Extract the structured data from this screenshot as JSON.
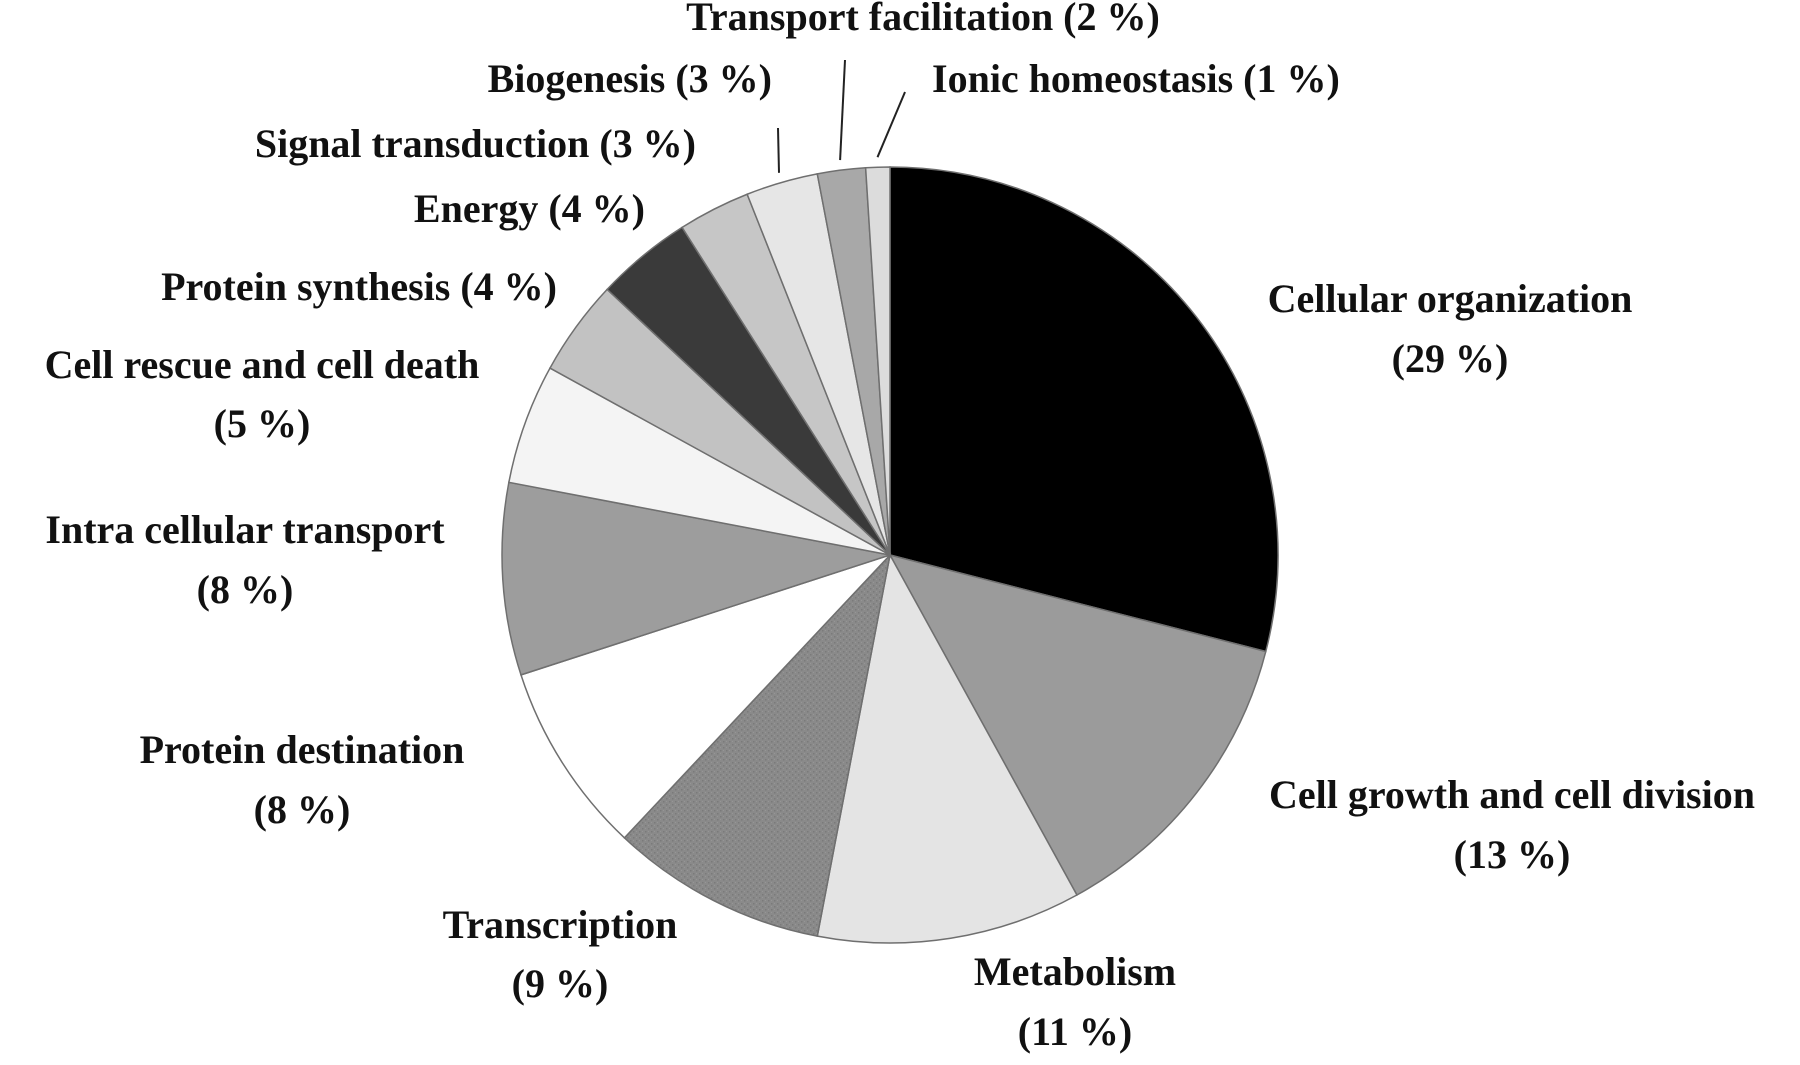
{
  "chart_data": {
    "type": "pie",
    "title": "",
    "slices": [
      {
        "label": "Cellular organization",
        "pct_text": "(29 %)",
        "value": 29,
        "color": "#000000",
        "texture": false
      },
      {
        "label": "Cell growth and cell division",
        "pct_text": "(13 %)",
        "value": 13,
        "color": "#9b9b9b",
        "texture": false
      },
      {
        "label": "Metabolism",
        "pct_text": "(11 %)",
        "value": 11,
        "color": "#e4e4e4",
        "texture": false
      },
      {
        "label": "Transcription",
        "pct_text": "(9 %)",
        "value": 9,
        "color": "#848484",
        "texture": true
      },
      {
        "label": "Protein destination",
        "pct_text": "(8 %)",
        "value": 8,
        "color": "#ffffff",
        "texture": false
      },
      {
        "label": "Intra cellular transport",
        "pct_text": "(8 %)",
        "value": 8,
        "color": "#9d9d9d",
        "texture": false
      },
      {
        "label": "Cell rescue and cell death",
        "pct_text": "(5 %)",
        "value": 5,
        "color": "#f4f4f4",
        "texture": false
      },
      {
        "label": "Protein synthesis",
        "pct_text": "(4 %)",
        "value": 4,
        "color": "#c2c2c2",
        "texture": false
      },
      {
        "label": "Energy",
        "pct_text": "(4 %)",
        "value": 4,
        "color": "#3a3a3a",
        "texture": false
      },
      {
        "label": "Signal transduction",
        "pct_text": "(3 %)",
        "value": 3,
        "color": "#c6c6c6",
        "texture": false
      },
      {
        "label": "Biogenesis",
        "pct_text": "(3 %)",
        "value": 3,
        "color": "#e6e6e6",
        "texture": false
      },
      {
        "label": "Transport facilitation",
        "pct_text": "(2 %)",
        "value": 2,
        "color": "#a8a8a8",
        "texture": false
      },
      {
        "label": "Ionic homeostasis",
        "pct_text": "(1 %)",
        "value": 1,
        "color": "#dcdcdc",
        "texture": false
      }
    ]
  }
}
